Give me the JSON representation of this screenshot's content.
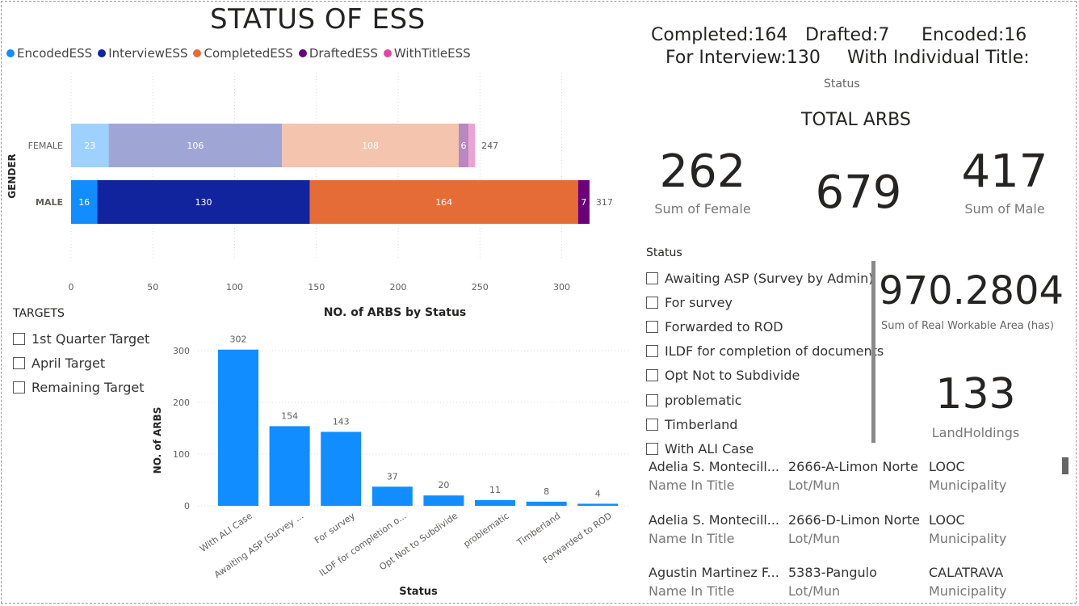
{
  "page_title": "STATUS OF ESS",
  "gender_chart": {
    "legend": [
      {
        "label": "EncodedESS",
        "color": "#118DFF"
      },
      {
        "label": "InterviewESS",
        "color": "#12239E"
      },
      {
        "label": "CompletedESS",
        "color": "#E66C37"
      },
      {
        "label": "DraftedESS",
        "color": "#6B007B"
      },
      {
        "label": "WithTitleESS",
        "color": "#E044A7"
      }
    ],
    "y_title": "GENDER",
    "x_ticks": [
      "0",
      "50",
      "100",
      "150",
      "200",
      "250",
      "300"
    ]
  },
  "summary": {
    "completed": "Completed:164",
    "drafted": "Drafted:7",
    "encoded": "Encoded:16",
    "for_interview": "For Interview:130",
    "with_title": "With Individual Title:",
    "status_caption": "Status"
  },
  "total_arbs": {
    "title": "TOTAL ARBS",
    "female_value": "262",
    "female_caption": "Sum of Female",
    "total_value": "679",
    "male_value": "417",
    "male_caption": "Sum of Male"
  },
  "status_slicer": {
    "title": "Status",
    "options": [
      "Awaiting ASP (Survey by Admin)",
      "For survey",
      "Forwarded to ROD",
      "ILDF for completion of documents",
      "Opt Not to Subdivide",
      "problematic",
      "Timberland",
      "With ALI Case"
    ]
  },
  "area_card": {
    "value": "970.2804",
    "caption": "Sum of Real Workable Area (has)"
  },
  "landholdings_card": {
    "value": "133",
    "caption": "LandHoldings"
  },
  "targets_slicer": {
    "title": "TARGETS",
    "options": [
      "1st Quarter Target",
      "April Target",
      "Remaining Target"
    ]
  },
  "holdings_table": {
    "rows": [
      {
        "name": "Adelia S. Montecill...",
        "lot": "2666-A-Limon Norte",
        "mun": "LOOC"
      },
      {
        "name": "Adelia S. Montecill...",
        "lot": "2666-D-Limon Norte",
        "mun": "LOOC"
      },
      {
        "name": "Agustin Martinez F...",
        "lot": "5383-Pangulo",
        "mun": "CALATRAVA"
      }
    ],
    "name_label": "Name In Title",
    "lot_label": "Lot/Mun",
    "mun_label": "Municipality"
  },
  "chart_data": [
    {
      "type": "bar",
      "orientation": "horizontal-stacked",
      "categories": [
        "FEMALE",
        "MALE"
      ],
      "series": [
        {
          "name": "EncodedESS",
          "values": [
            23,
            16
          ]
        },
        {
          "name": "InterviewESS",
          "values": [
            106,
            130
          ]
        },
        {
          "name": "CompletedESS",
          "values": [
            108,
            164
          ]
        },
        {
          "name": "DraftedESS",
          "values": [
            6,
            7
          ]
        },
        {
          "name": "WithTitleESS",
          "values": [
            4,
            0
          ]
        }
      ],
      "totals": [
        247,
        317
      ],
      "series_colors": {
        "FEMALE": [
          "#9FD1FF",
          "#9FA6D6",
          "#F4C4AE",
          "#B888C0",
          "#EDA2D3"
        ],
        "MALE": [
          "#118DFF",
          "#12239E",
          "#E66C37",
          "#6B007B",
          "#E044A7"
        ]
      },
      "ylabel": "GENDER",
      "xlim": [
        0,
        320
      ]
    },
    {
      "type": "bar",
      "title": "NO. of ARBS by Status",
      "xlabel": "Status",
      "ylabel": "NO. of ARBS",
      "categories": [
        "With ALI Case",
        "Awaiting ASP (Survey ...",
        "For survey",
        "ILDF for completion o...",
        "Opt Not to Subdivide",
        "problematic",
        "Timberland",
        "Forwarded to ROD"
      ],
      "values": [
        302,
        154,
        143,
        37,
        20,
        11,
        8,
        4
      ],
      "y_ticks": [
        "0",
        "100",
        "200",
        "300"
      ],
      "ylim": [
        0,
        320
      ],
      "color": "#118DFF"
    }
  ]
}
